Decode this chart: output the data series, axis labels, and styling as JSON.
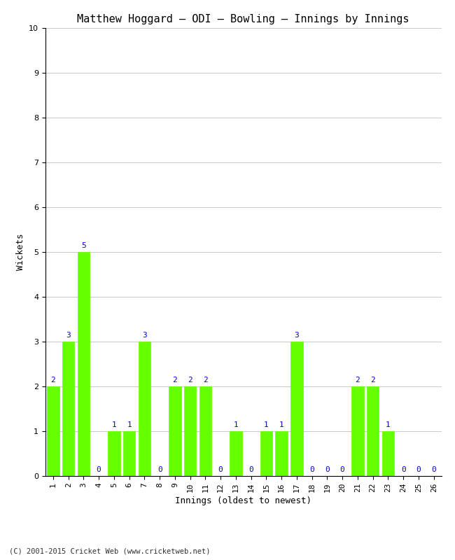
{
  "title": "Matthew Hoggard – ODI – Bowling – Innings by Innings",
  "xlabel": "Innings (oldest to newest)",
  "ylabel": "Wickets",
  "categories": [
    "1",
    "2",
    "3",
    "4",
    "5",
    "6",
    "7",
    "8",
    "9",
    "10",
    "11",
    "12",
    "13",
    "14",
    "15",
    "16",
    "17",
    "18",
    "19",
    "20",
    "21",
    "22",
    "23",
    "24",
    "25",
    "26"
  ],
  "values": [
    2,
    3,
    5,
    0,
    1,
    1,
    3,
    0,
    2,
    2,
    2,
    0,
    1,
    0,
    1,
    1,
    3,
    0,
    0,
    0,
    2,
    2,
    1,
    0,
    0,
    0
  ],
  "bar_color": "#66ff00",
  "bar_edge_color": "#66ff00",
  "label_color": "#0000cc",
  "ylim": [
    0,
    10
  ],
  "yticks": [
    0,
    1,
    2,
    3,
    4,
    5,
    6,
    7,
    8,
    9,
    10
  ],
  "background_color": "#ffffff",
  "grid_color": "#cccccc",
  "title_fontsize": 11,
  "axis_label_fontsize": 9,
  "tick_fontsize": 8,
  "value_label_fontsize": 8,
  "footer": "(C) 2001-2015 Cricket Web (www.cricketweb.net)"
}
